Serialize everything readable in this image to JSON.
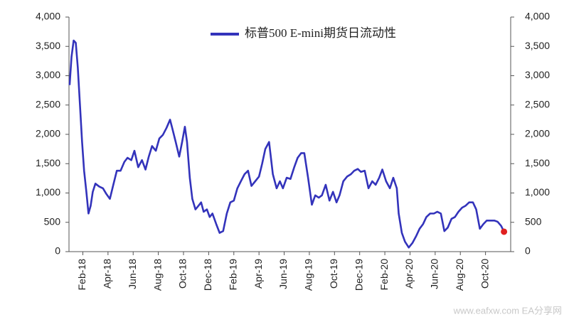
{
  "chart_data": {
    "type": "line",
    "series": [
      {
        "name": "标普500 E-mini期货日流动性",
        "color": "#3333bb",
        "axis": "y",
        "x": [
          -0.05,
          0.1,
          0.27,
          0.44,
          0.6,
          0.78,
          0.94,
          1.1,
          1.28,
          1.45,
          1.62,
          1.79,
          2.0,
          2.3,
          2.6,
          2.85,
          3.15,
          3.4,
          3.7,
          4.0,
          4.3,
          4.55,
          4.85,
          5.1,
          5.4,
          5.7,
          5.98,
          6.24,
          6.5,
          6.8,
          7.08,
          7.36,
          7.65,
          7.93,
          8.1,
          8.38,
          8.66,
          8.89,
          9.11,
          9.28,
          9.5,
          9.7,
          9.95,
          10.18,
          10.4,
          10.6,
          10.86,
          11.08,
          11.3,
          11.6,
          11.87,
          12.15,
          12.44,
          12.72,
          13.0,
          13.28,
          13.56,
          13.85,
          14.13,
          14.4,
          14.7,
          15.0,
          15.25,
          15.5,
          15.8,
          16.1,
          16.4,
          16.66,
          16.9,
          17.2,
          17.5,
          17.8,
          18.07,
          18.35,
          18.6,
          18.9,
          19.2,
          19.47,
          19.75,
          20.0,
          20.3,
          20.6,
          20.88,
          21.16,
          21.4,
          21.7,
          22.0,
          22.3,
          22.57,
          22.85,
          23.1,
          23.4,
          23.7,
          24.0,
          24.27,
          24.55,
          24.8,
          25.1,
          25.4,
          25.67,
          25.95,
          26.1,
          26.35,
          26.6,
          26.9,
          27.2,
          27.5,
          27.76,
          28.04,
          28.3,
          28.6,
          28.9,
          29.17,
          29.45,
          29.73,
          30.0,
          30.3,
          30.57,
          30.85,
          31.14,
          31.4,
          31.7,
          32.0,
          32.26,
          32.55,
          32.83,
          33.1,
          33.4,
          33.7,
          33.96,
          34.24,
          34.47
        ],
        "values": [
          2840,
          3320,
          3600,
          3560,
          3140,
          2470,
          1870,
          1380,
          1020,
          650,
          780,
          1020,
          1160,
          1110,
          1080,
          990,
          900,
          1120,
          1380,
          1380,
          1530,
          1600,
          1560,
          1720,
          1440,
          1560,
          1400,
          1620,
          1800,
          1720,
          1930,
          1990,
          2110,
          2250,
          2110,
          1870,
          1620,
          1870,
          2130,
          1870,
          1260,
          900,
          720,
          780,
          840,
          680,
          720,
          590,
          650,
          470,
          320,
          350,
          650,
          840,
          870,
          1080,
          1200,
          1320,
          1380,
          1120,
          1200,
          1280,
          1500,
          1750,
          1870,
          1320,
          1080,
          1200,
          1080,
          1260,
          1240,
          1440,
          1600,
          1680,
          1680,
          1260,
          800,
          960,
          920,
          960,
          1140,
          870,
          1020,
          840,
          960,
          1200,
          1280,
          1320,
          1380,
          1410,
          1360,
          1380,
          1080,
          1200,
          1140,
          1260,
          1400,
          1200,
          1080,
          1260,
          1080,
          650,
          320,
          170,
          70,
          150,
          270,
          390,
          470,
          590,
          650,
          650,
          680,
          650,
          350,
          410,
          560,
          590,
          680,
          750,
          780,
          840,
          840,
          720,
          390,
          470,
          530,
          530,
          530,
          510,
          440,
          340
        ]
      }
    ],
    "last_point_color": "#e02020",
    "xlim": [
      -0.1,
      35
    ],
    "xticks": [
      {
        "value": 1,
        "label": "Feb-18"
      },
      {
        "value": 3,
        "label": "Apr-18"
      },
      {
        "value": 5,
        "label": "Jun-18"
      },
      {
        "value": 7,
        "label": "Aug-18"
      },
      {
        "value": 9,
        "label": "Oct-18"
      },
      {
        "value": 11,
        "label": "Dec-18"
      },
      {
        "value": 13,
        "label": "Feb-19"
      },
      {
        "value": 15,
        "label": "Apr-19"
      },
      {
        "value": 17,
        "label": "Jun-19"
      },
      {
        "value": 19,
        "label": "Aug-19"
      },
      {
        "value": 21,
        "label": "Oct-19"
      },
      {
        "value": 23,
        "label": "Dec-19"
      },
      {
        "value": 25,
        "label": "Feb-20"
      },
      {
        "value": 27,
        "label": "Apr-20"
      },
      {
        "value": 29,
        "label": "Jun-20"
      },
      {
        "value": 31,
        "label": "Aug-20"
      },
      {
        "value": 33,
        "label": "Oct-20"
      }
    ],
    "ylim": [
      0,
      4000
    ],
    "yticks": [
      0,
      {
        "value": 500,
        "label": "500"
      },
      {
        "value": 1000,
        "label": "1,000"
      },
      {
        "value": 1500,
        "label": "1,500"
      },
      {
        "value": 2000,
        "label": "2,000"
      },
      {
        "value": 2500,
        "label": "2,500"
      },
      {
        "value": 3000,
        "label": "3,000"
      },
      {
        "value": 3500,
        "label": "3,500"
      },
      {
        "value": 4000,
        "label": "4,000"
      }
    ],
    "y2lim": [
      0,
      4000
    ],
    "y2ticks": [
      0,
      {
        "value": 500,
        "label": "500"
      },
      {
        "value": 1000,
        "label": "1,000"
      },
      {
        "value": 1500,
        "label": "1,500"
      },
      {
        "value": 2000,
        "label": "2,000"
      },
      {
        "value": 2500,
        "label": "2,500"
      },
      {
        "value": 3000,
        "label": "3,000"
      },
      {
        "value": 3500,
        "label": "3,500"
      },
      {
        "value": 4000,
        "label": "4,000"
      }
    ],
    "watermark": "www.eafxw.com  EA分享网"
  }
}
